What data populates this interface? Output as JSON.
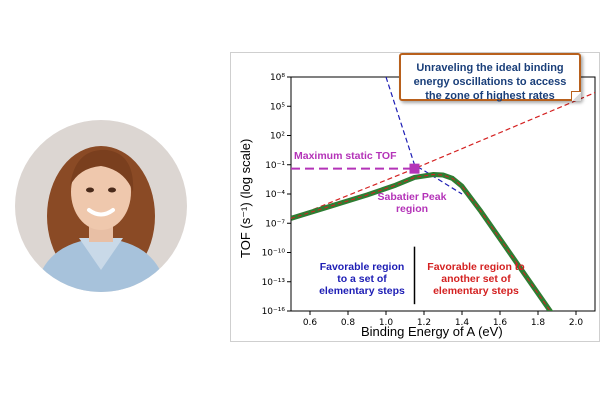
{
  "callout": {
    "text": "Unraveling the ideal binding energy oscillations to access the zone of highest rates"
  },
  "annotations": {
    "max_static": "Maximum static TOF",
    "sabatier": "Sabatier Peak region",
    "favorable_left": "Favorable region to a set of elementary steps",
    "favorable_right": "Favorable region to another set of elementary steps"
  },
  "colors": {
    "volcano": "#2e7d32",
    "left_leg": "#d42121",
    "right_leg": "#1d1db5",
    "max_marker": "#b433b8"
  },
  "chart_data": {
    "type": "line",
    "xlabel": "Binding Energy of A (eV)",
    "ylabel": "TOF (s⁻¹) (log scale)",
    "xlim": [
      0.5,
      2.1
    ],
    "ylim": [
      -16,
      8
    ],
    "y_scale": "log10",
    "x_ticks": [
      0.6,
      0.8,
      1.0,
      1.2,
      1.4,
      1.6,
      1.8,
      2.0
    ],
    "x_tick_labels": [
      "0.6",
      "0.8",
      "1.0",
      "1.2",
      "1.4",
      "1.6",
      "1.8",
      "2.0"
    ],
    "y_ticks": [
      8,
      5,
      2,
      -1,
      -4,
      -7,
      -10,
      -13,
      -16
    ],
    "y_tick_labels": [
      "10⁸",
      "10⁵",
      "10²",
      "10⁻¹",
      "10⁻⁴",
      "10⁻⁷",
      "10⁻¹⁰",
      "10⁻¹³",
      "10⁻¹⁶"
    ],
    "series": [
      {
        "style": "solid-thick",
        "x": [
          0.5,
          0.7,
          0.9,
          1.05,
          1.15,
          1.25,
          1.3,
          1.35,
          1.4,
          1.5,
          1.6,
          1.7,
          1.8,
          1.9
        ],
        "y": [
          -6.5,
          -5.3,
          -4.1,
          -3.1,
          -2.3,
          -2.0,
          -2.05,
          -2.4,
          -3.2,
          -5.8,
          -8.6,
          -11.4,
          -14.2,
          -17.0
        ]
      },
      {
        "style": "dashed",
        "x": [
          0.5,
          1.15,
          2.1
        ],
        "y": [
          -6.5,
          -1.4,
          6.4
        ]
      },
      {
        "style": "dashed",
        "x": [
          1.0,
          1.15,
          1.4
        ],
        "y": [
          8.0,
          -1.0,
          -4.0
        ]
      }
    ],
    "max_static_tof": {
      "x": 1.15,
      "y": -1.4
    },
    "divider_x": 1.15,
    "grid": false,
    "legend": "none"
  }
}
